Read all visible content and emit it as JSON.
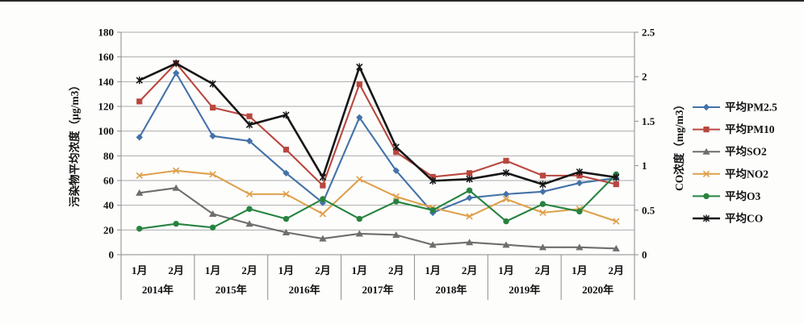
{
  "chart_data": {
    "type": "line",
    "title": "",
    "grid": true,
    "legend_position": "right",
    "y_left": {
      "label": "污染物平均浓度（μg/m3）",
      "min": 0,
      "max": 180,
      "step": 20
    },
    "y_right": {
      "label": "CO浓度（mg/m3）",
      "min": 0,
      "max": 2.5,
      "step": 0.5
    },
    "x_axis": {
      "month_labels": [
        "1月",
        "2月"
      ],
      "years": [
        "2014年",
        "2015年",
        "2016年",
        "2017年",
        "2018年",
        "2019年",
        "2020年"
      ]
    },
    "series": [
      {
        "name": "平均PM2.5",
        "axis": "left",
        "color": "#4472a8",
        "marker": "diamond",
        "values": [
          95,
          147,
          96,
          92,
          66,
          42,
          111,
          68,
          34,
          46,
          49,
          51,
          58,
          62
        ]
      },
      {
        "name": "平均PM10",
        "axis": "left",
        "color": "#b9473e",
        "marker": "square",
        "values": [
          124,
          155,
          119,
          112,
          85,
          56,
          138,
          83,
          63,
          66,
          76,
          64,
          64,
          57
        ]
      },
      {
        "name": "平均SO2",
        "axis": "left",
        "color": "#6e6e6e",
        "marker": "triangle",
        "values": [
          50,
          54,
          33,
          25,
          18,
          13,
          17,
          16,
          8,
          10,
          8,
          6,
          6,
          5
        ]
      },
      {
        "name": "平均NO2",
        "axis": "left",
        "color": "#dfa04b",
        "marker": "x",
        "values": [
          64,
          68,
          65,
          49,
          49,
          33,
          61,
          47,
          38,
          31,
          45,
          34,
          37,
          27
        ]
      },
      {
        "name": "平均O3",
        "axis": "left",
        "color": "#27833f",
        "marker": "circle",
        "values": [
          21,
          25,
          22,
          37,
          29,
          45,
          29,
          43,
          36,
          52,
          27,
          41,
          35,
          65
        ]
      },
      {
        "name": "平均CO",
        "axis": "right",
        "color": "#161616",
        "marker": "asterisk",
        "values": [
          1.96,
          2.15,
          1.92,
          1.46,
          1.57,
          0.87,
          2.11,
          1.21,
          0.83,
          0.85,
          0.92,
          0.79,
          0.93,
          0.87
        ]
      }
    ],
    "style_colors": {
      "gridline": "#ababab",
      "axis": "#8c8c8c",
      "background": "#fdfdfc"
    }
  }
}
